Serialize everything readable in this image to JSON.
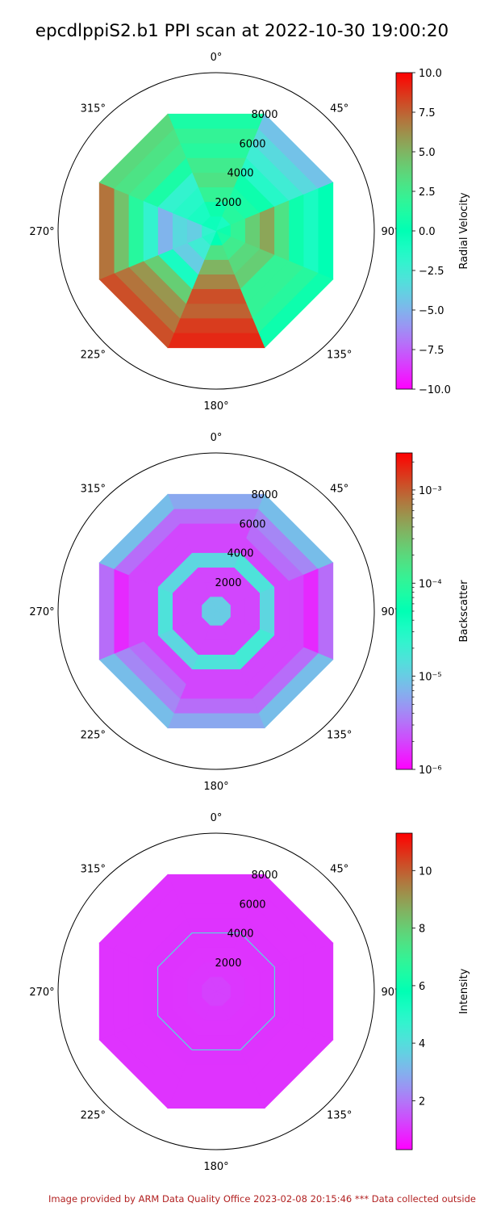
{
  "figure": {
    "title": "epcdlppiS2.b1 PPI scan at 2022-10-30 19:00:20",
    "footer": "Image provided by ARM Data Quality Office 2023-02-08 20:15:46    *** Data collected outside"
  },
  "chart_data": [
    {
      "type": "heatmap",
      "projection": "polar",
      "theta_direction": "clockwise",
      "theta_zero": "north",
      "angle_labels": [
        "0°",
        "45°",
        "90°",
        "135°",
        "180°",
        "225°",
        "270°",
        "315°"
      ],
      "radial_ticks": [
        2000,
        4000,
        6000,
        8000
      ],
      "rlim": [
        0,
        10000
      ],
      "ring_edges": [
        1000,
        2000,
        3000,
        4000,
        5000,
        6000,
        7000,
        8000,
        9000
      ],
      "colorbar": {
        "label": "Radial Velocity",
        "colormap": "rainbow",
        "scale": "linear",
        "vmin": -10.0,
        "vmax": 10.0,
        "ticks": [
          -10.0,
          -7.5,
          -5.0,
          -2.5,
          0.0,
          2.5,
          5.0,
          7.5,
          10.0
        ],
        "tick_labels": [
          "−10.0",
          "−7.5",
          "−5.0",
          "−2.5",
          "0.0",
          "2.5",
          "5.0",
          "7.5",
          "10.0"
        ]
      },
      "sector_values": [
        [
          -0.5,
          -1.0,
          0.5,
          1.0,
          0.0,
          -1.5,
          -2.0,
          -0.5
        ],
        [
          0.5,
          1.5,
          2.0,
          2.5,
          3.0,
          -2.5,
          -4.0,
          -1.0
        ],
        [
          2.0,
          1.0,
          4.0,
          3.5,
          5.0,
          -4.0,
          -3.5,
          -1.5
        ],
        [
          3.0,
          0.5,
          5.5,
          4.0,
          6.5,
          -1.0,
          -5.0,
          -2.0
        ],
        [
          2.5,
          -1.5,
          3.0,
          2.0,
          8.0,
          4.0,
          -2.0,
          1.0
        ],
        [
          1.5,
          -2.5,
          0.5,
          2.0,
          7.5,
          6.0,
          1.5,
          2.5
        ],
        [
          2.0,
          -3.5,
          -1.0,
          1.5,
          8.5,
          7.0,
          4.5,
          3.0
        ],
        [
          1.0,
          -4.5,
          0.0,
          0.5,
          9.0,
          8.0,
          7.0,
          3.5
        ]
      ]
    },
    {
      "type": "heatmap",
      "projection": "polar",
      "theta_direction": "clockwise",
      "theta_zero": "north",
      "angle_labels": [
        "0°",
        "45°",
        "90°",
        "135°",
        "180°",
        "225°",
        "270°",
        "315°"
      ],
      "radial_ticks": [
        2000,
        4000,
        6000,
        8000
      ],
      "rlim": [
        0,
        10000
      ],
      "ring_edges": [
        1000,
        2000,
        3000,
        4000,
        5000,
        6000,
        7000,
        8000,
        9000
      ],
      "colorbar": {
        "label": "Backscatter",
        "colormap": "rainbow",
        "scale": "log",
        "vmin": 1e-06,
        "vmax": 0.0025,
        "ticks": [
          1e-06,
          1e-05,
          0.0001,
          0.001
        ],
        "tick_labels": [
          "10⁻⁶",
          "10⁻⁵",
          "10⁻⁴",
          "10⁻³"
        ]
      },
      "sector_values": [
        [
          1e-05,
          1e-05,
          1e-05,
          1e-05,
          1e-05,
          1e-05,
          1e-05,
          1e-05
        ],
        [
          2e-06,
          2e-06,
          2e-06,
          2e-06,
          2e-06,
          2e-06,
          2e-06,
          2e-06
        ],
        [
          2e-06,
          2e-06,
          2e-06,
          2e-06,
          2e-06,
          2e-06,
          2e-06,
          2e-06
        ],
        [
          1.2e-05,
          1.5e-05,
          1.2e-05,
          1.8e-05,
          1.5e-05,
          1.2e-05,
          1.5e-05,
          1.2e-05
        ],
        [
          2e-06,
          2e-06,
          2e-06,
          2e-06,
          2e-06,
          2e-06,
          2e-06,
          2e-06
        ],
        [
          2e-06,
          3e-06,
          2e-06,
          2e-06,
          2e-06,
          3e-06,
          2e-06,
          2e-06
        ],
        [
          3e-06,
          4e-06,
          1.5e-06,
          3e-06,
          3e-06,
          4e-06,
          1.5e-06,
          3e-06
        ],
        [
          6e-06,
          8e-06,
          3e-06,
          8e-06,
          6e-06,
          8e-06,
          3e-06,
          8e-06
        ]
      ]
    },
    {
      "type": "heatmap",
      "projection": "polar",
      "theta_direction": "clockwise",
      "theta_zero": "north",
      "angle_labels": [
        "0°",
        "45°",
        "90°",
        "135°",
        "180°",
        "225°",
        "270°",
        "315°"
      ],
      "radial_ticks": [
        2000,
        4000,
        6000,
        8000
      ],
      "rlim": [
        0,
        10000
      ],
      "ring_edges": [
        1000,
        2000,
        3000,
        4000,
        5000,
        6000,
        7000,
        8000,
        9000
      ],
      "colorbar": {
        "label": "Intensity",
        "colormap": "rainbow",
        "scale": "linear",
        "vmin": 0.3,
        "vmax": 11.3,
        "ticks": [
          2,
          4,
          6,
          8,
          10
        ],
        "tick_labels": [
          "2",
          "4",
          "6",
          "8",
          "10"
        ]
      },
      "sector_values": [
        [
          1.2,
          1.2,
          1.2,
          1.2,
          1.2,
          1.2,
          1.2,
          1.2
        ],
        [
          1.05,
          1.05,
          1.05,
          1.05,
          1.05,
          1.05,
          1.05,
          1.05
        ],
        [
          1.02,
          1.02,
          1.02,
          1.02,
          1.02,
          1.02,
          1.02,
          1.02
        ],
        [
          1.01,
          1.01,
          1.01,
          1.01,
          1.01,
          1.01,
          1.01,
          1.01
        ],
        [
          1.01,
          1.01,
          1.01,
          1.01,
          1.01,
          1.01,
          1.01,
          1.01
        ],
        [
          1.0,
          1.0,
          1.0,
          1.0,
          1.0,
          1.0,
          1.0,
          1.0
        ],
        [
          1.0,
          1.0,
          1.0,
          1.0,
          1.0,
          1.0,
          1.0,
          1.0
        ],
        [
          1.0,
          1.0,
          1.0,
          1.0,
          1.0,
          1.0,
          1.0,
          1.0
        ]
      ],
      "ring_boundary": {
        "range": 4000,
        "value": 4.0
      }
    }
  ]
}
